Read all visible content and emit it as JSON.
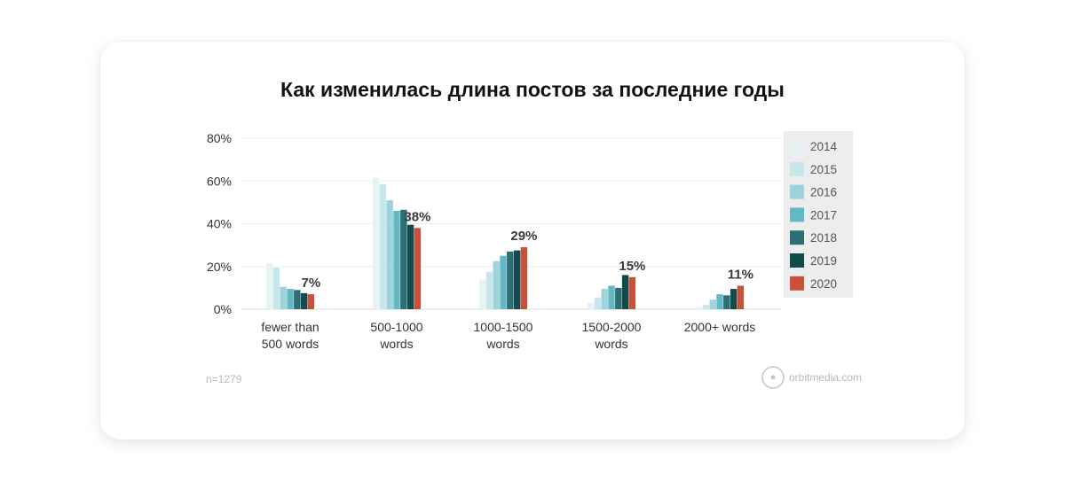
{
  "title": "Как изменилась длина постов за последние годы",
  "chart_data": {
    "type": "bar",
    "categories": [
      [
        "fewer than",
        "500 words"
      ],
      [
        "500-1000",
        "words"
      ],
      [
        "1000-1500",
        "words"
      ],
      [
        "1500-2000",
        "words"
      ],
      [
        "2000+ words"
      ]
    ],
    "series": [
      {
        "name": "2014",
        "color": "#e6f3f5",
        "values": [
          21.5,
          61.5,
          14,
          3,
          1
        ]
      },
      {
        "name": "2015",
        "color": "#c5e6ea",
        "values": [
          19.5,
          58.5,
          17.5,
          5.5,
          2
        ]
      },
      {
        "name": "2016",
        "color": "#9fd3da",
        "values": [
          10.5,
          51,
          22.5,
          9.5,
          4.5
        ]
      },
      {
        "name": "2017",
        "color": "#62b8c4",
        "values": [
          9.5,
          46,
          25,
          11,
          7
        ]
      },
      {
        "name": "2018",
        "color": "#2c6e73",
        "values": [
          9,
          46.5,
          27,
          10,
          6.5
        ]
      },
      {
        "name": "2019",
        "color": "#134a4c",
        "values": [
          7.5,
          39.5,
          27.5,
          16,
          9.5
        ]
      },
      {
        "name": "2020",
        "color": "#c8513c",
        "values": [
          7,
          38,
          29,
          15,
          11
        ]
      }
    ],
    "data_labels": [
      "7%",
      "38%",
      "29%",
      "15%",
      "11%"
    ],
    "y_ticks": [
      "0%",
      "20%",
      "40%",
      "60%",
      "80%"
    ],
    "ylim": [
      0,
      80
    ],
    "xlabel": "",
    "ylabel": "",
    "grid": true,
    "legend_position": "right"
  },
  "footnote": "n=1279",
  "source": "orbitmedia.com"
}
